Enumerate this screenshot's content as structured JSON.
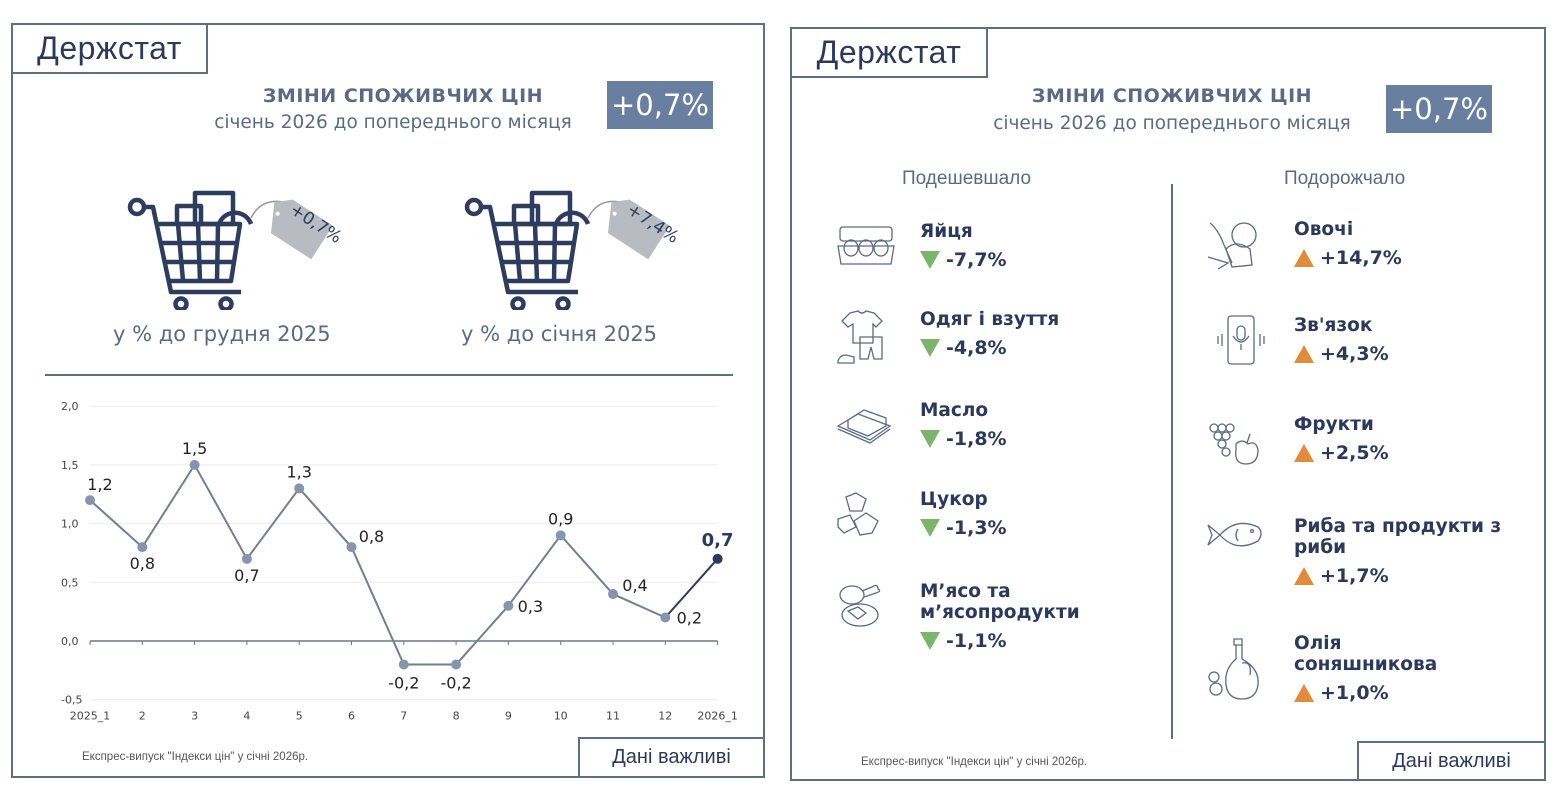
{
  "left_panel": {
    "logo": "Держстат",
    "title": "ЗМІНИ СПОЖИВЧИХ ЦІН",
    "subtitle": "січень 2026 до попереднього місяця",
    "badge": "+0,7%",
    "carts": [
      {
        "tag": "+0,7%",
        "label": "у % до грудня 2025"
      },
      {
        "tag": "+7,4%",
        "label": "у % до січня 2025"
      }
    ],
    "footnote": "Експрес-випуск \"Індекси цін\" у січні 2026р.",
    "important_label": "Дані важливі"
  },
  "right_panel": {
    "logo": "Держстат",
    "title": "ЗМІНИ СПОЖИВЧИХ ЦІН",
    "subtitle": "січень 2026 до попереднього місяця",
    "badge": "+0,7%",
    "cheaper": {
      "heading": "Подешевшало",
      "items": [
        {
          "name": "Яйця",
          "value": "-7,7%",
          "icon": "egg-carton-icon"
        },
        {
          "name": "Одяг і взуття",
          "value": "-4,8%",
          "icon": "clothes-icon"
        },
        {
          "name": "Масло",
          "value": "-1,8%",
          "icon": "butter-icon"
        },
        {
          "name": "Цукор",
          "value": "-1,3%",
          "icon": "sugar-cubes-icon"
        },
        {
          "name": "М’ясо та м’ясопродукти",
          "value": "-1,1%",
          "icon": "meat-icon"
        }
      ]
    },
    "pricier": {
      "heading": "Подорожчало",
      "items": [
        {
          "name": "Овочі",
          "value": "+14,7%",
          "icon": "vegetables-icon"
        },
        {
          "name": "Зв'язок",
          "value": "+4,3%",
          "icon": "phone-icon"
        },
        {
          "name": "Фрукти",
          "value": "+2,5%",
          "icon": "fruits-icon"
        },
        {
          "name": "Риба та продукти з риби",
          "value": "+1,7%",
          "icon": "fish-icon"
        },
        {
          "name": "Олія соняшникова",
          "value": "+1,0%",
          "icon": "oil-bottle-icon"
        }
      ]
    },
    "footnote": "Експрес-випуск \"Індекси цін\" у січні 2026р.",
    "important_label": "Дані важливі"
  },
  "colors": {
    "navy": "#2b3a5c",
    "border": "#5f6f82",
    "badge_bg": "#687f9f",
    "line": "#6f7f94",
    "point": "#8595ae",
    "down": "#7db46c",
    "up": "#e38b3c",
    "tag": "#b8bcc2"
  },
  "chart_data": {
    "type": "line",
    "title": "",
    "xlabel": "",
    "ylabel": "",
    "categories": [
      "2025_1",
      "2",
      "3",
      "4",
      "5",
      "6",
      "7",
      "8",
      "9",
      "10",
      "11",
      "12",
      "2026_1"
    ],
    "values": [
      1.2,
      0.8,
      1.5,
      0.7,
      1.3,
      0.8,
      -0.2,
      -0.2,
      0.3,
      0.9,
      0.4,
      0.2,
      0.7
    ],
    "data_labels": [
      "1,2",
      "0,8",
      "1,5",
      "0,7",
      "1,3",
      "0,8",
      "-0,2",
      "-0,2",
      "0,3",
      "0,9",
      "0,4",
      "0,2",
      "0,7"
    ],
    "ylim": [
      -0.5,
      2.0
    ],
    "yticks": [
      "2,0",
      "1,5",
      "1,0",
      "0,5",
      "0,0",
      "-0,5"
    ],
    "grid": true,
    "legend": "none"
  }
}
